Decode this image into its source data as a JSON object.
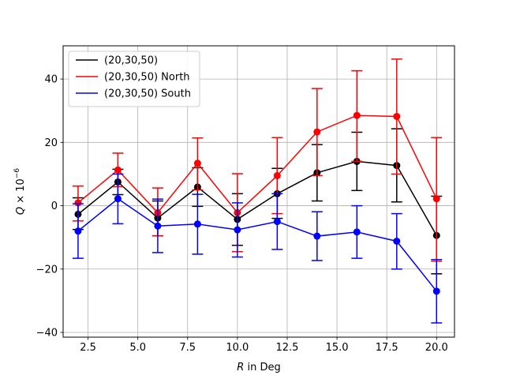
{
  "chart_data": {
    "type": "line",
    "xlabel_var": "R",
    "xlabel_rest": " in Deg",
    "ylabel_var": "Q",
    "ylabel_mid": " × 10",
    "ylabel_exp": "−6",
    "xlim": [
      1.25,
      20.9
    ],
    "ylim": [
      -41.5,
      50.5
    ],
    "xticks": [
      2.5,
      5.0,
      7.5,
      10.0,
      12.5,
      15.0,
      17.5,
      20.0
    ],
    "xtick_labels": [
      "2.5",
      "5.0",
      "7.5",
      "10.0",
      "12.5",
      "15.0",
      "17.5",
      "20.0"
    ],
    "yticks": [
      -40,
      -20,
      0,
      20,
      40
    ],
    "ytick_labels": [
      "−40",
      "−20",
      "0",
      "20",
      "40"
    ],
    "grid": true,
    "legend_position": "top-left",
    "x": [
      2,
      4,
      6,
      8,
      10,
      12,
      14,
      16,
      18,
      20
    ],
    "series": [
      {
        "name": "(20,30,50)",
        "color": "#000000",
        "values": [
          -2.7,
          7.5,
          -3.9,
          5.9,
          -4.3,
          3.8,
          10.4,
          14.0,
          12.7,
          -9.4
        ],
        "err_low": [
          -7.5,
          3.5,
          -9.5,
          -0.2,
          -12.5,
          -4.0,
          1.5,
          4.8,
          1.2,
          -21.5
        ],
        "err_high": [
          2.5,
          11.5,
          1.5,
          12.0,
          3.8,
          11.8,
          19.3,
          23.2,
          24.3,
          3.0
        ]
      },
      {
        "name": "(20,30,50) North",
        "color": "#ff0000",
        "values": [
          0.9,
          11.3,
          -2.2,
          13.4,
          -2.2,
          9.5,
          23.3,
          28.5,
          28.2,
          2.2
        ],
        "err_low": [
          -4.8,
          6.0,
          -9.5,
          5.0,
          -14.5,
          -2.5,
          9.5,
          14.0,
          10.0,
          -17.5
        ],
        "err_high": [
          6.2,
          16.6,
          5.6,
          21.4,
          10.1,
          21.5,
          37.0,
          42.6,
          46.3,
          21.5
        ]
      },
      {
        "name": "(20,30,50) South",
        "color": "#0000ff",
        "values": [
          -8.0,
          2.2,
          -6.4,
          -5.8,
          -7.6,
          -5.0,
          -9.6,
          -8.3,
          -11.2,
          -27.0
        ],
        "err_low": [
          -16.6,
          -5.7,
          -14.8,
          -15.3,
          -16.2,
          -13.8,
          -17.3,
          -16.6,
          -20.0,
          -37.0
        ],
        "err_high": [
          0.6,
          10.0,
          2.1,
          3.6,
          0.9,
          3.8,
          -1.9,
          0.0,
          -2.5,
          -17.0
        ]
      }
    ]
  }
}
